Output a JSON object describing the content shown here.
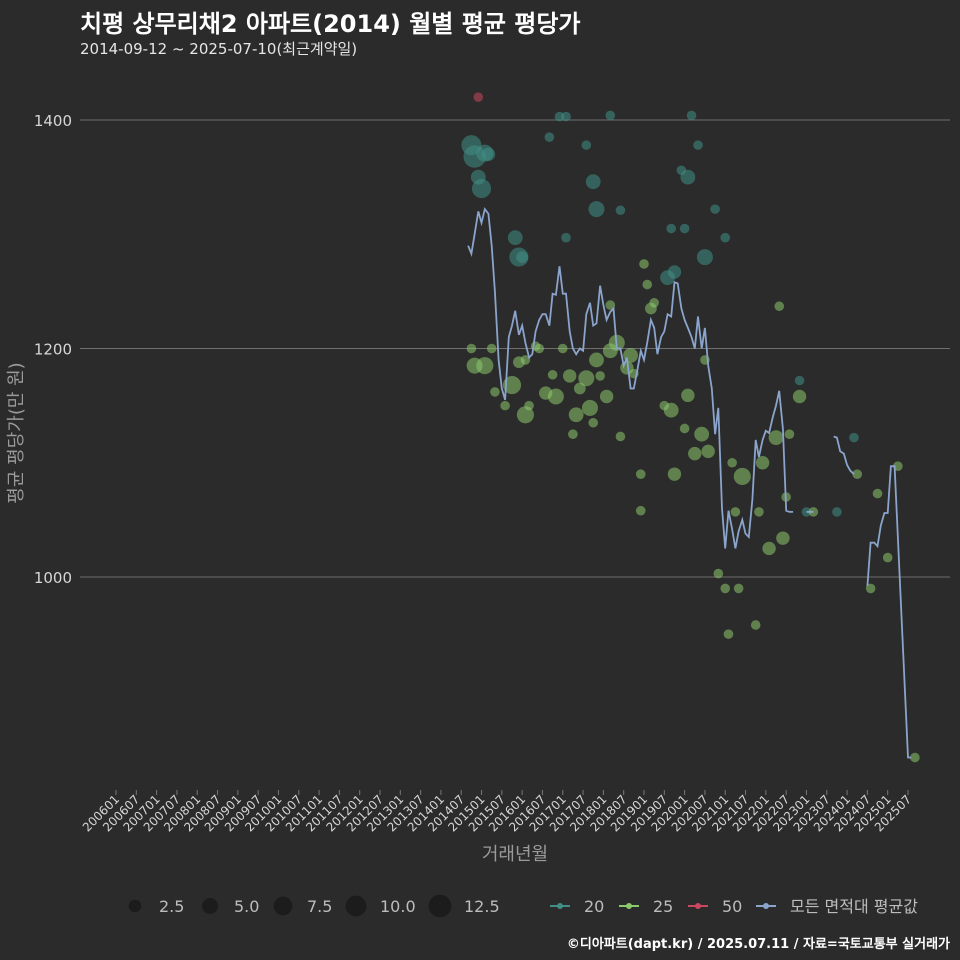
{
  "title": "치평 상무리채2 아파트(2014) 월별 평균 평당가",
  "subtitle": "2014-09-12 ~ 2025-07-10(최근계약일)",
  "footer": "©디아파트(dapt.kr) / 2025.07.11 / 자료=국토교통부 실거래가",
  "colors": {
    "background": "#2b2b2b",
    "grid": "#6e6e6e",
    "area20": "#3f8f86",
    "area25": "#8cc96b",
    "area50": "#c9475f",
    "avg": "#8aa4cc"
  },
  "chart_data": {
    "type": "scatter",
    "title": "치평 상무리채2 아파트(2014) 월별 평균 평당가",
    "xlabel": "거래년월",
    "ylabel": "평균 평당가(만 원)",
    "ylim": [
      770,
      1440
    ],
    "y_ticks": [
      1000,
      1200,
      1400
    ],
    "x_tick_labels": [
      "200601",
      "200607",
      "200701",
      "200707",
      "200801",
      "200807",
      "200901",
      "200907",
      "201001",
      "201007",
      "201101",
      "201107",
      "201201",
      "201207",
      "201301",
      "201307",
      "201401",
      "201407",
      "201501",
      "201507",
      "201601",
      "201607",
      "201701",
      "201707",
      "201801",
      "201807",
      "201901",
      "201907",
      "202001",
      "202007",
      "202101",
      "202107",
      "202201",
      "202207",
      "202301",
      "202307",
      "202401",
      "202407",
      "202501",
      "202507"
    ],
    "size_legend": {
      "title": "",
      "values": [
        2.5,
        5.0,
        7.5,
        10.0,
        12.5
      ]
    },
    "color_legend": [
      {
        "key": "area20",
        "label": "20"
      },
      {
        "key": "area25",
        "label": "25"
      },
      {
        "key": "area50",
        "label": "50"
      },
      {
        "key": "avg",
        "label": "모든 면적대 평균값"
      }
    ],
    "series": [
      {
        "name": "20",
        "points": [
          [
            2014.75,
            1378,
            9
          ],
          [
            2014.83,
            1368,
            12
          ],
          [
            2014.92,
            1350,
            4
          ],
          [
            2015.0,
            1340,
            8
          ],
          [
            2015.08,
            1371,
            6
          ],
          [
            2015.17,
            1370,
            3
          ],
          [
            2015.83,
            1297,
            4
          ],
          [
            2015.92,
            1280,
            8
          ],
          [
            2016.0,
            1280,
            2
          ],
          [
            2016.67,
            1385,
            1
          ],
          [
            2016.92,
            1403,
            1
          ],
          [
            2017.08,
            1403,
            1
          ],
          [
            2017.08,
            1297,
            1
          ],
          [
            2017.58,
            1378,
            1
          ],
          [
            2017.75,
            1346,
            4
          ],
          [
            2017.83,
            1322,
            5
          ],
          [
            2018.17,
            1404,
            1
          ],
          [
            2018.42,
            1321,
            1
          ],
          [
            2019.67,
            1305,
            1
          ],
          [
            2019.92,
            1356,
            1
          ],
          [
            2020.0,
            1305,
            1
          ],
          [
            2020.08,
            1350,
            4
          ],
          [
            2020.17,
            1404,
            1
          ],
          [
            2020.33,
            1378,
            1
          ],
          [
            2020.5,
            1280,
            5
          ],
          [
            2020.75,
            1322,
            1
          ],
          [
            2021.0,
            1297,
            1
          ],
          [
            2019.58,
            1262,
            4
          ],
          [
            2019.75,
            1267,
            3
          ],
          [
            2022.83,
            1172,
            1
          ],
          [
            2023.0,
            1057,
            1
          ],
          [
            2023.75,
            1057,
            1
          ],
          [
            2024.17,
            1122,
            1
          ]
        ]
      },
      {
        "name": "25",
        "points": [
          [
            2014.75,
            1200,
            1
          ],
          [
            2014.83,
            1185,
            5
          ],
          [
            2015.08,
            1185,
            6
          ],
          [
            2015.25,
            1200,
            1
          ],
          [
            2015.33,
            1162,
            1
          ],
          [
            2015.58,
            1150,
            1
          ],
          [
            2015.75,
            1168,
            7
          ],
          [
            2015.92,
            1188,
            2
          ],
          [
            2016.08,
            1142,
            6
          ],
          [
            2016.17,
            1150,
            1
          ],
          [
            2016.42,
            1200,
            1
          ],
          [
            2016.58,
            1161,
            3
          ],
          [
            2016.75,
            1177,
            1
          ],
          [
            2016.83,
            1158,
            5
          ],
          [
            2017.0,
            1200,
            1
          ],
          [
            2017.17,
            1176,
            3
          ],
          [
            2017.25,
            1125,
            1
          ],
          [
            2017.33,
            1142,
            4
          ],
          [
            2017.42,
            1165,
            2
          ],
          [
            2017.58,
            1174,
            5
          ],
          [
            2017.67,
            1148,
            5
          ],
          [
            2017.75,
            1135,
            1
          ],
          [
            2017.83,
            1190,
            4
          ],
          [
            2017.92,
            1176,
            1
          ],
          [
            2018.08,
            1158,
            3
          ],
          [
            2018.17,
            1198,
            4
          ],
          [
            2018.33,
            1205,
            5
          ],
          [
            2018.42,
            1123,
            1
          ],
          [
            2018.58,
            1183,
            3
          ],
          [
            2018.67,
            1194,
            4
          ],
          [
            2018.75,
            1178,
            1
          ],
          [
            2018.92,
            1090,
            1
          ],
          [
            2019.0,
            1274,
            1
          ],
          [
            2019.08,
            1256,
            1
          ],
          [
            2019.17,
            1235,
            2
          ],
          [
            2019.25,
            1240,
            1
          ],
          [
            2019.5,
            1150,
            1
          ],
          [
            2019.67,
            1146,
            4
          ],
          [
            2019.75,
            1090,
            3
          ],
          [
            2020.0,
            1130,
            1
          ],
          [
            2020.08,
            1159,
            3
          ],
          [
            2020.25,
            1108,
            3
          ],
          [
            2020.42,
            1125,
            4
          ],
          [
            2020.58,
            1110,
            3
          ],
          [
            2020.83,
            1003,
            1
          ],
          [
            2021.0,
            990,
            1
          ],
          [
            2021.08,
            950,
            1
          ],
          [
            2021.17,
            1100,
            1
          ],
          [
            2021.25,
            1057,
            1
          ],
          [
            2021.33,
            990,
            1
          ],
          [
            2021.42,
            1088,
            6
          ],
          [
            2021.75,
            958,
            1
          ],
          [
            2021.83,
            1057,
            1
          ],
          [
            2021.92,
            1100,
            3
          ],
          [
            2022.08,
            1025,
            3
          ],
          [
            2022.25,
            1122,
            4
          ],
          [
            2022.33,
            1237,
            1
          ],
          [
            2022.42,
            1034,
            3
          ],
          [
            2022.5,
            1070,
            1
          ],
          [
            2022.58,
            1125,
            1
          ],
          [
            2022.83,
            1158,
            3
          ],
          [
            2023.17,
            1057,
            1
          ],
          [
            2024.25,
            1090,
            1
          ],
          [
            2024.58,
            990,
            1
          ],
          [
            2024.75,
            1073,
            1
          ],
          [
            2025.0,
            1017,
            1
          ],
          [
            2025.25,
            1097,
            1
          ],
          [
            2025.67,
            842,
            1
          ],
          [
            2018.92,
            1058,
            1
          ],
          [
            2020.5,
            1190,
            1
          ],
          [
            2018.17,
            1238,
            1
          ],
          [
            2016.08,
            1190,
            1
          ],
          [
            2016.33,
            1202,
            1
          ]
        ]
      },
      {
        "name": "50",
        "points": [
          [
            2014.92,
            1420,
            1
          ]
        ]
      },
      {
        "name": "모든 면적대 평균값",
        "line": true,
        "segments": [
          [
            [
              2014.67,
              1290
            ],
            [
              2014.75,
              1283
            ],
            [
              2014.83,
              1300
            ],
            [
              2014.92,
              1320
            ],
            [
              2015.0,
              1310
            ],
            [
              2015.08,
              1322
            ],
            [
              2015.17,
              1318
            ],
            [
              2015.25,
              1290
            ],
            [
              2015.33,
              1250
            ],
            [
              2015.42,
              1190
            ],
            [
              2015.5,
              1165
            ],
            [
              2015.58,
              1155
            ],
            [
              2015.67,
              1210
            ],
            [
              2015.75,
              1220
            ],
            [
              2015.83,
              1233
            ],
            [
              2015.92,
              1212
            ],
            [
              2016.0,
              1220
            ],
            [
              2016.08,
              1205
            ],
            [
              2016.17,
              1192
            ],
            [
              2016.25,
              1195
            ],
            [
              2016.33,
              1215
            ],
            [
              2016.42,
              1225
            ],
            [
              2016.5,
              1230
            ],
            [
              2016.58,
              1230
            ],
            [
              2016.67,
              1220
            ],
            [
              2016.75,
              1248
            ],
            [
              2016.83,
              1247
            ],
            [
              2016.92,
              1272
            ],
            [
              2017.0,
              1248
            ],
            [
              2017.08,
              1248
            ],
            [
              2017.17,
              1215
            ],
            [
              2017.25,
              1200
            ],
            [
              2017.33,
              1195
            ],
            [
              2017.42,
              1200
            ],
            [
              2017.5,
              1198
            ],
            [
              2017.58,
              1230
            ],
            [
              2017.67,
              1240
            ],
            [
              2017.75,
              1220
            ],
            [
              2017.83,
              1222
            ],
            [
              2017.92,
              1255
            ],
            [
              2018.0,
              1238
            ],
            [
              2018.08,
              1225
            ],
            [
              2018.17,
              1232
            ],
            [
              2018.25,
              1235
            ],
            [
              2018.33,
              1200
            ],
            [
              2018.42,
              1200
            ],
            [
              2018.5,
              1185
            ],
            [
              2018.58,
              1192
            ],
            [
              2018.67,
              1165
            ],
            [
              2018.75,
              1165
            ],
            [
              2018.83,
              1180
            ],
            [
              2018.92,
              1198
            ],
            [
              2019.0,
              1190
            ],
            [
              2019.08,
              1205
            ],
            [
              2019.17,
              1225
            ],
            [
              2019.25,
              1218
            ],
            [
              2019.33,
              1195
            ],
            [
              2019.42,
              1210
            ],
            [
              2019.5,
              1215
            ],
            [
              2019.58,
              1230
            ],
            [
              2019.67,
              1228
            ],
            [
              2019.75,
              1258
            ],
            [
              2019.83,
              1257
            ],
            [
              2019.92,
              1235
            ],
            [
              2020.0,
              1225
            ],
            [
              2020.08,
              1218
            ],
            [
              2020.17,
              1210
            ],
            [
              2020.25,
              1200
            ],
            [
              2020.33,
              1228
            ],
            [
              2020.42,
              1200
            ],
            [
              2020.5,
              1218
            ],
            [
              2020.58,
              1185
            ],
            [
              2020.67,
              1165
            ],
            [
              2020.75,
              1125
            ],
            [
              2020.83,
              1148
            ],
            [
              2020.92,
              1060
            ],
            [
              2021.0,
              1025
            ],
            [
              2021.08,
              1058
            ],
            [
              2021.17,
              1042
            ],
            [
              2021.25,
              1025
            ],
            [
              2021.33,
              1040
            ],
            [
              2021.42,
              1050
            ],
            [
              2021.5,
              1038
            ],
            [
              2021.58,
              1035
            ],
            [
              2021.67,
              1068
            ],
            [
              2021.75,
              1120
            ],
            [
              2021.83,
              1105
            ],
            [
              2021.92,
              1120
            ],
            [
              2022.0,
              1128
            ],
            [
              2022.08,
              1126
            ],
            [
              2022.17,
              1140
            ],
            [
              2022.25,
              1150
            ],
            [
              2022.33,
              1163
            ],
            [
              2022.42,
              1130
            ],
            [
              2022.5,
              1058
            ],
            [
              2022.58,
              1057
            ],
            [
              2022.67,
              1057
            ]
          ],
          [
            [
              2023.0,
              1057
            ],
            [
              2023.08,
              1057
            ],
            [
              2023.17,
              1057
            ]
          ],
          [
            [
              2023.67,
              1123
            ],
            [
              2023.75,
              1122
            ],
            [
              2023.83,
              1110
            ],
            [
              2023.92,
              1108
            ],
            [
              2024.0,
              1098
            ],
            [
              2024.08,
              1093
            ],
            [
              2024.17,
              1090
            ]
          ],
          [
            [
              2024.5,
              992
            ],
            [
              2024.58,
              1030
            ],
            [
              2024.67,
              1030
            ],
            [
              2024.75,
              1027
            ],
            [
              2024.83,
              1045
            ],
            [
              2024.92,
              1056
            ],
            [
              2025.0,
              1056
            ],
            [
              2025.08,
              1097
            ],
            [
              2025.17,
              1097
            ],
            [
              2025.5,
              842
            ],
            [
              2025.58,
              842
            ]
          ]
        ]
      }
    ]
  }
}
